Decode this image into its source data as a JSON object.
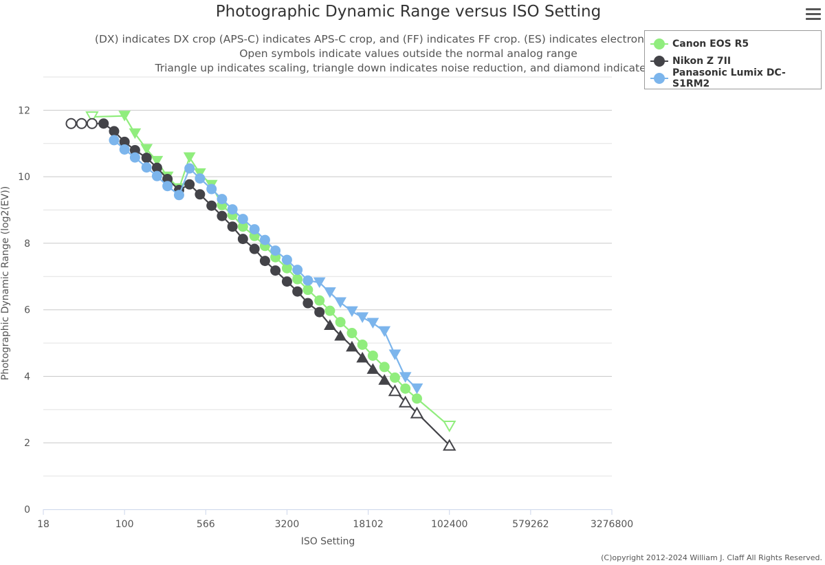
{
  "title": "Photographic Dynamic Range versus ISO Setting",
  "subtitles": [
    "(DX) indicates DX crop (APS-C) indicates APS-C crop, and (FF) indicates FF crop. (ES) indicates electronic shutter. (p) i",
    "Open symbols indicate values outside the normal analog range",
    "Triangle up indicates scaling, triangle down indicates noise reduction, and diamond indicates b"
  ],
  "menu_icon": "hamburger-menu-icon",
  "credits": "(C)opyright 2012-2024 William J. Claff All Rights Reserved.",
  "chart_data": {
    "type": "line",
    "title": "Photographic Dynamic Range versus ISO Setting",
    "xlabel": "ISO Setting",
    "ylabel": "Photographic Dynamic Range (log2(EV))",
    "x_scale": "log",
    "x_ticks": [
      "18",
      "100",
      "566",
      "3200",
      "18102",
      "102400",
      "579262",
      "3276800"
    ],
    "x_tick_values": [
      17.68,
      100,
      565.7,
      3200,
      18102,
      102400,
      579262,
      3276800
    ],
    "y_ticks": [
      "0",
      "2",
      "4",
      "6",
      "8",
      "10",
      "12"
    ],
    "ylim": [
      0,
      13
    ],
    "grid": true,
    "legend_position": "top-right",
    "series": [
      {
        "name": "Canon EOS R5",
        "color": "#90ed7d",
        "points": [
          {
            "x": 50,
            "y": 11.8,
            "m": "tdo"
          },
          {
            "x": 100,
            "y": 11.83,
            "m": "td"
          },
          {
            "x": 125,
            "y": 11.3,
            "m": "td"
          },
          {
            "x": 160,
            "y": 10.83,
            "m": "td"
          },
          {
            "x": 200,
            "y": 10.47,
            "m": "td"
          },
          {
            "x": 250,
            "y": 10.0,
            "m": "td"
          },
          {
            "x": 320,
            "y": 9.65,
            "m": "td"
          },
          {
            "x": 400,
            "y": 10.58,
            "m": "td"
          },
          {
            "x": 500,
            "y": 10.1,
            "m": "td"
          },
          {
            "x": 640,
            "y": 9.75,
            "m": "td"
          },
          {
            "x": 800,
            "y": 9.15,
            "m": "c"
          },
          {
            "x": 1000,
            "y": 8.85,
            "m": "c"
          },
          {
            "x": 1250,
            "y": 8.5,
            "m": "c"
          },
          {
            "x": 1600,
            "y": 8.22,
            "m": "c"
          },
          {
            "x": 2000,
            "y": 7.92,
            "m": "c"
          },
          {
            "x": 2500,
            "y": 7.58,
            "m": "c"
          },
          {
            "x": 3200,
            "y": 7.25,
            "m": "c"
          },
          {
            "x": 4000,
            "y": 6.92,
            "m": "c"
          },
          {
            "x": 5000,
            "y": 6.6,
            "m": "c"
          },
          {
            "x": 6400,
            "y": 6.28,
            "m": "c"
          },
          {
            "x": 8000,
            "y": 5.97,
            "m": "c"
          },
          {
            "x": 10000,
            "y": 5.63,
            "m": "c"
          },
          {
            "x": 12800,
            "y": 5.3,
            "m": "c"
          },
          {
            "x": 16000,
            "y": 4.95,
            "m": "c"
          },
          {
            "x": 20000,
            "y": 4.62,
            "m": "c"
          },
          {
            "x": 25600,
            "y": 4.28,
            "m": "c"
          },
          {
            "x": 32000,
            "y": 3.96,
            "m": "c"
          },
          {
            "x": 40000,
            "y": 3.63,
            "m": "c"
          },
          {
            "x": 51200,
            "y": 3.33,
            "m": "c"
          },
          {
            "x": 102400,
            "y": 2.5,
            "m": "tdo"
          }
        ]
      },
      {
        "name": "Nikon Z 7II",
        "color": "#434348",
        "points": [
          {
            "x": 32,
            "y": 11.6,
            "m": "co"
          },
          {
            "x": 40,
            "y": 11.6,
            "m": "co"
          },
          {
            "x": 50,
            "y": 11.6,
            "m": "co"
          },
          {
            "x": 64,
            "y": 11.6,
            "m": "c"
          },
          {
            "x": 80,
            "y": 11.37,
            "m": "c"
          },
          {
            "x": 100,
            "y": 11.05,
            "m": "c"
          },
          {
            "x": 125,
            "y": 10.8,
            "m": "c"
          },
          {
            "x": 160,
            "y": 10.57,
            "m": "c"
          },
          {
            "x": 200,
            "y": 10.27,
            "m": "c"
          },
          {
            "x": 250,
            "y": 9.93,
            "m": "c"
          },
          {
            "x": 320,
            "y": 9.6,
            "m": "c"
          },
          {
            "x": 400,
            "y": 9.77,
            "m": "c"
          },
          {
            "x": 500,
            "y": 9.47,
            "m": "c"
          },
          {
            "x": 640,
            "y": 9.13,
            "m": "c"
          },
          {
            "x": 800,
            "y": 8.82,
            "m": "c"
          },
          {
            "x": 1000,
            "y": 8.5,
            "m": "c"
          },
          {
            "x": 1250,
            "y": 8.13,
            "m": "c"
          },
          {
            "x": 1600,
            "y": 7.83,
            "m": "c"
          },
          {
            "x": 2000,
            "y": 7.47,
            "m": "c"
          },
          {
            "x": 2500,
            "y": 7.18,
            "m": "c"
          },
          {
            "x": 3200,
            "y": 6.85,
            "m": "c"
          },
          {
            "x": 4000,
            "y": 6.55,
            "m": "c"
          },
          {
            "x": 5000,
            "y": 6.2,
            "m": "c"
          },
          {
            "x": 6400,
            "y": 5.93,
            "m": "c"
          },
          {
            "x": 8000,
            "y": 5.55,
            "m": "tu"
          },
          {
            "x": 10000,
            "y": 5.23,
            "m": "tu"
          },
          {
            "x": 12800,
            "y": 4.9,
            "m": "tu"
          },
          {
            "x": 16000,
            "y": 4.57,
            "m": "tu"
          },
          {
            "x": 20000,
            "y": 4.23,
            "m": "tu"
          },
          {
            "x": 25600,
            "y": 3.9,
            "m": "tu"
          },
          {
            "x": 32000,
            "y": 3.57,
            "m": "tuo"
          },
          {
            "x": 40000,
            "y": 3.23,
            "m": "tuo"
          },
          {
            "x": 51200,
            "y": 2.9,
            "m": "tuo"
          },
          {
            "x": 102400,
            "y": 1.93,
            "m": "tuo"
          }
        ]
      },
      {
        "name": "Panasonic Lumix DC-S1RM2",
        "color": "#7cb5ec",
        "points": [
          {
            "x": 80,
            "y": 11.1,
            "m": "c"
          },
          {
            "x": 100,
            "y": 10.82,
            "m": "c"
          },
          {
            "x": 125,
            "y": 10.58,
            "m": "c"
          },
          {
            "x": 160,
            "y": 10.28,
            "m": "c"
          },
          {
            "x": 200,
            "y": 10.02,
            "m": "c"
          },
          {
            "x": 250,
            "y": 9.72,
            "m": "c"
          },
          {
            "x": 320,
            "y": 9.45,
            "m": "c"
          },
          {
            "x": 400,
            "y": 10.25,
            "m": "c"
          },
          {
            "x": 500,
            "y": 9.95,
            "m": "c"
          },
          {
            "x": 640,
            "y": 9.63,
            "m": "c"
          },
          {
            "x": 800,
            "y": 9.33,
            "m": "c"
          },
          {
            "x": 1000,
            "y": 9.02,
            "m": "c"
          },
          {
            "x": 1250,
            "y": 8.73,
            "m": "c"
          },
          {
            "x": 1600,
            "y": 8.42,
            "m": "c"
          },
          {
            "x": 2000,
            "y": 8.1,
            "m": "c"
          },
          {
            "x": 2500,
            "y": 7.78,
            "m": "c"
          },
          {
            "x": 3200,
            "y": 7.5,
            "m": "c"
          },
          {
            "x": 4000,
            "y": 7.2,
            "m": "c"
          },
          {
            "x": 5000,
            "y": 6.88,
            "m": "c"
          },
          {
            "x": 6400,
            "y": 6.82,
            "m": "td"
          },
          {
            "x": 8000,
            "y": 6.52,
            "m": "td"
          },
          {
            "x": 10000,
            "y": 6.22,
            "m": "td"
          },
          {
            "x": 12800,
            "y": 5.95,
            "m": "td"
          },
          {
            "x": 16000,
            "y": 5.77,
            "m": "td"
          },
          {
            "x": 20000,
            "y": 5.6,
            "m": "td"
          },
          {
            "x": 25600,
            "y": 5.35,
            "m": "td"
          },
          {
            "x": 32000,
            "y": 4.65,
            "m": "td"
          },
          {
            "x": 40000,
            "y": 3.97,
            "m": "td"
          },
          {
            "x": 51200,
            "y": 3.63,
            "m": "td"
          }
        ]
      }
    ]
  }
}
